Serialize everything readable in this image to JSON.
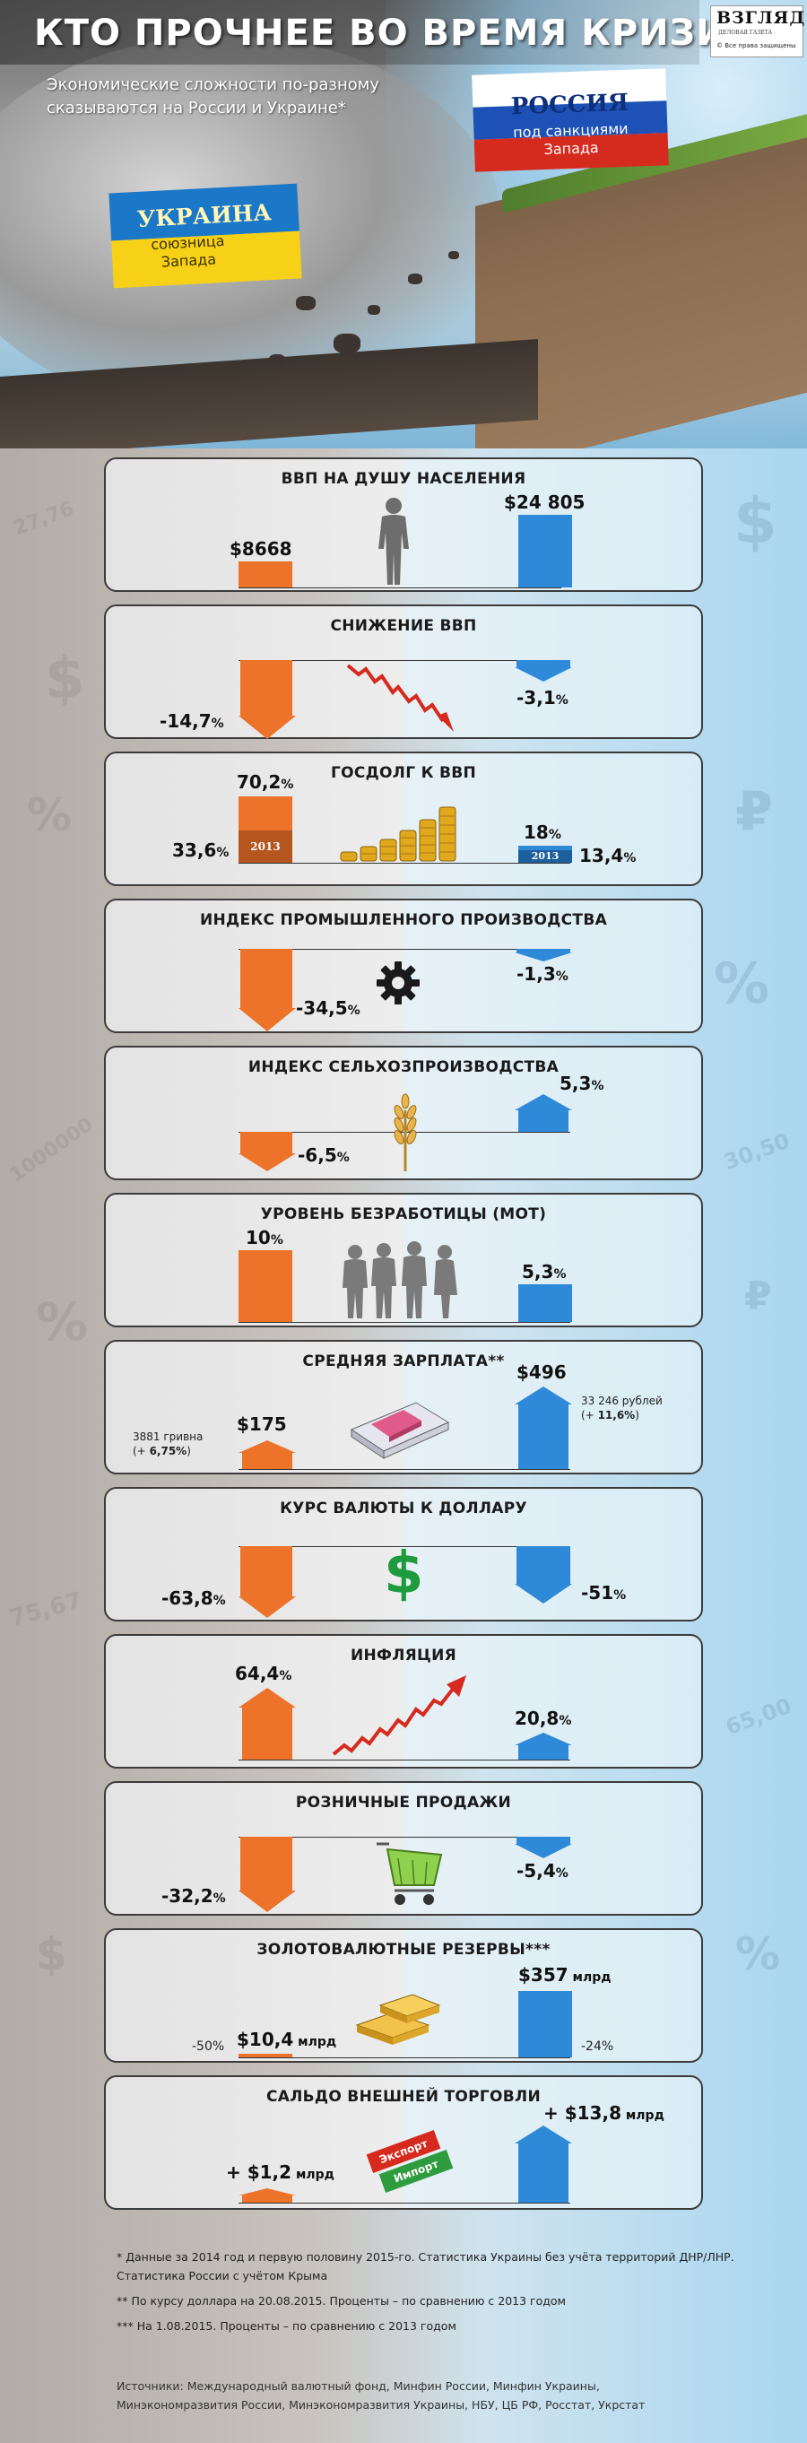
{
  "header": {
    "title": "КТО ПРОЧНЕЕ ВО ВРЕМЯ КРИЗИСА",
    "subtitle_line1": "Экономические сложности по-разному",
    "subtitle_line2": "сказываются на России и Украине*",
    "logo": "ВЗГЛЯД",
    "logo_sub": "ДЕЛОВАЯ ГАЗЕТА",
    "logo_rights": "© Все права защищены",
    "ukraine_flag": {
      "name": "УКРАИНА",
      "line1": "союзница",
      "line2": "Запада"
    },
    "russia_flag": {
      "name": "РОССИЯ",
      "line1": "под санкциями",
      "line2": "Запада"
    }
  },
  "colors": {
    "ukraine": "#ec7329",
    "russia": "#2e8ad8"
  },
  "decor": [
    "27,76",
    "$",
    "%",
    "1000000",
    "%",
    "75,67",
    "$",
    "$",
    "₽",
    "%",
    "30,50",
    "₽",
    "65,00",
    "%"
  ],
  "panels": [
    {
      "title": "ВВП НА ДУШУ НАСЕЛЕНИЯ",
      "ua": "$8668",
      "ru": "$24 805",
      "icon": "person-silhouette-icon"
    },
    {
      "title": "СНИЖЕНИЕ ВВП",
      "ua_num": "-14,7",
      "ua_unit": "%",
      "ru_num": "-3,1",
      "ru_unit": "%",
      "icon": "falling-line-chart-icon"
    },
    {
      "title": "ГОСДОЛГ К ВВП",
      "ua_top_num": "70,2",
      "ua_top_unit": "%",
      "ua_2013_num": "33,6",
      "ua_2013_unit": "%",
      "ru_top_num": "18",
      "ru_top_unit": "%",
      "ru_2013_num": "13,4",
      "ru_2013_unit": "%",
      "tag": "2013",
      "icon": "coin-stacks-icon"
    },
    {
      "title": "ИНДЕКС ПРОМЫШЛЕННОГО ПРОИЗВОДСТВА",
      "ua_num": "-34,5",
      "ua_unit": "%",
      "ru_num": "-1,3",
      "ru_unit": "%",
      "icon": "gear-icon"
    },
    {
      "title": "ИНДЕКС СЕЛЬХОЗПРОИЗВОДСТВА",
      "ua_num": "-6,5",
      "ua_unit": "%",
      "ru_num": "5,3",
      "ru_unit": "%",
      "icon": "wheat-icon"
    },
    {
      "title": "УРОВЕНЬ БЕЗРАБОТИЦЫ (МОТ)",
      "ua_num": "10",
      "ua_unit": "%",
      "ru_num": "5,3",
      "ru_unit": "%",
      "icon": "people-group-icon"
    },
    {
      "title": "СРЕДНЯЯ ЗАРПЛАТА**",
      "ua": "$175",
      "ru": "$496",
      "ua_note1": "3881 гривна",
      "ua_note2_pre": "(+ ",
      "ua_note2_val": "6,75%",
      "ua_note2_post": ")",
      "ru_note1": "33 246 рублей",
      "ru_note2_pre": "(+ ",
      "ru_note2_val": "11,6%",
      "ru_note2_post": ")",
      "icon": "money-stack-icon"
    },
    {
      "title": "КУРС ВАЛЮТЫ К ДОЛЛАРУ",
      "ua_num": "-63,8",
      "ua_unit": "%",
      "ru_num": "-51",
      "ru_unit": "%",
      "icon": "dollar-sign-icon",
      "dollar_glyph": "$"
    },
    {
      "title": "ИНФЛЯЦИЯ",
      "ua_num": "64,4",
      "ua_unit": "%",
      "ru_num": "20,8",
      "ru_unit": "%",
      "icon": "rising-line-chart-icon"
    },
    {
      "title": "РОЗНИЧНЫЕ ПРОДАЖИ",
      "ua_num": "-32,2",
      "ua_unit": "%",
      "ru_num": "-5,4",
      "ru_unit": "%",
      "icon": "shopping-cart-icon"
    },
    {
      "title": "ЗОЛОТОВАЛЮТНЫЕ РЕЗЕРВЫ***",
      "ua": "$10,4",
      "ua_unit": " млрд",
      "ru": "$357",
      "ru_unit": " млрд",
      "ua_pct": "-50%",
      "ru_pct": "-24%",
      "icon": "gold-bars-icon"
    },
    {
      "title": "САЛЬДО ВНЕШНЕЙ ТОРГОВЛИ",
      "ua": "+ $1,2",
      "ua_unit": " млрд",
      "ru": "+ $13,8",
      "ru_unit": " млрд",
      "arrow_export": "Экспорт",
      "arrow_import": "Импорт",
      "icon": "export-import-arrows-icon"
    }
  ],
  "footnotes": [
    "* Данные за 2014 год и первую половину 2015-го. Статистика Украины без учёта территорий ДНР/ЛНР. Статистика России с учётом Крыма",
    "** По курсу доллара на 20.08.2015. Проценты – по сравнению с 2013 годом",
    "*** На 1.08.2015. Проценты – по сравнению с 2013 годом"
  ],
  "sources": "Источники: Международный валютный фонд, Минфин России, Минфин Украины, Минэкономразвития России, Минэкономразвития Украины, НБУ, ЦБ РФ, Росстат, Укрстат"
}
